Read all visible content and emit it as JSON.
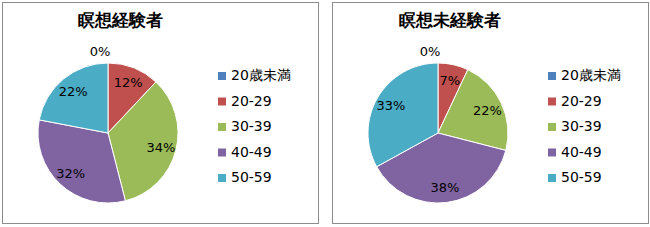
{
  "chart_data": [
    {
      "type": "pie",
      "title": "瞑想経験者",
      "categories": [
        "20歳未満",
        "20-29",
        "30-39",
        "40-49",
        "50-59"
      ],
      "values": [
        0,
        12,
        34,
        32,
        22
      ],
      "value_labels": [
        "0%",
        "12%",
        "34%",
        "32%",
        "22%"
      ],
      "colors": [
        "#4f81bd",
        "#c0504d",
        "#9bbb59",
        "#8064a2",
        "#4bacc6"
      ],
      "data_labels": true,
      "legend": "right"
    },
    {
      "type": "pie",
      "title": "瞑想未経験者",
      "categories": [
        "20歳未満",
        "20-29",
        "30-39",
        "40-49",
        "50-59"
      ],
      "values": [
        0,
        7,
        22,
        38,
        33
      ],
      "value_labels": [
        "0%",
        "7%",
        "22%",
        "38%",
        "33%"
      ],
      "colors": [
        "#4f81bd",
        "#c0504d",
        "#9bbb59",
        "#8064a2",
        "#4bacc6"
      ],
      "data_labels": true,
      "legend": "right"
    }
  ]
}
